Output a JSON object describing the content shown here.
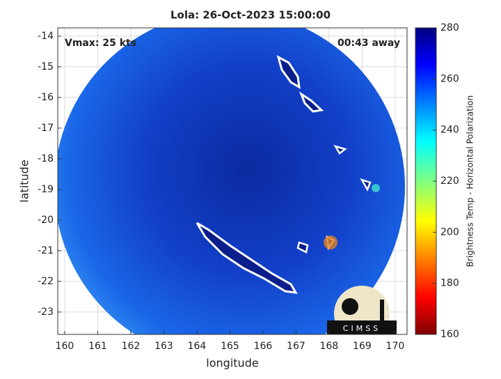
{
  "chart_data": {
    "type": "image",
    "title": "Lola: 26-Oct-2023 15:00:00",
    "annotations": [
      "Vmax: 25 kts",
      "00:43 away"
    ],
    "logo": "CIMSS",
    "xlabel": "longitude",
    "ylabel": "latitude",
    "xlim": [
      159.79,
      170.36
    ],
    "ylim": [
      -23.73,
      -13.73
    ],
    "xticks": [
      160,
      161,
      162,
      163,
      164,
      165,
      166,
      167,
      168,
      169,
      170
    ],
    "yticks": [
      -14,
      -15,
      -16,
      -17,
      -18,
      -19,
      -20,
      -21,
      -22,
      -23
    ],
    "grid": true,
    "colorbar": {
      "label": "Brightness Temp - Horizontal Polarization",
      "lim": [
        160,
        280
      ],
      "ticks": [
        160,
        180,
        200,
        220,
        240,
        260,
        280
      ]
    }
  }
}
